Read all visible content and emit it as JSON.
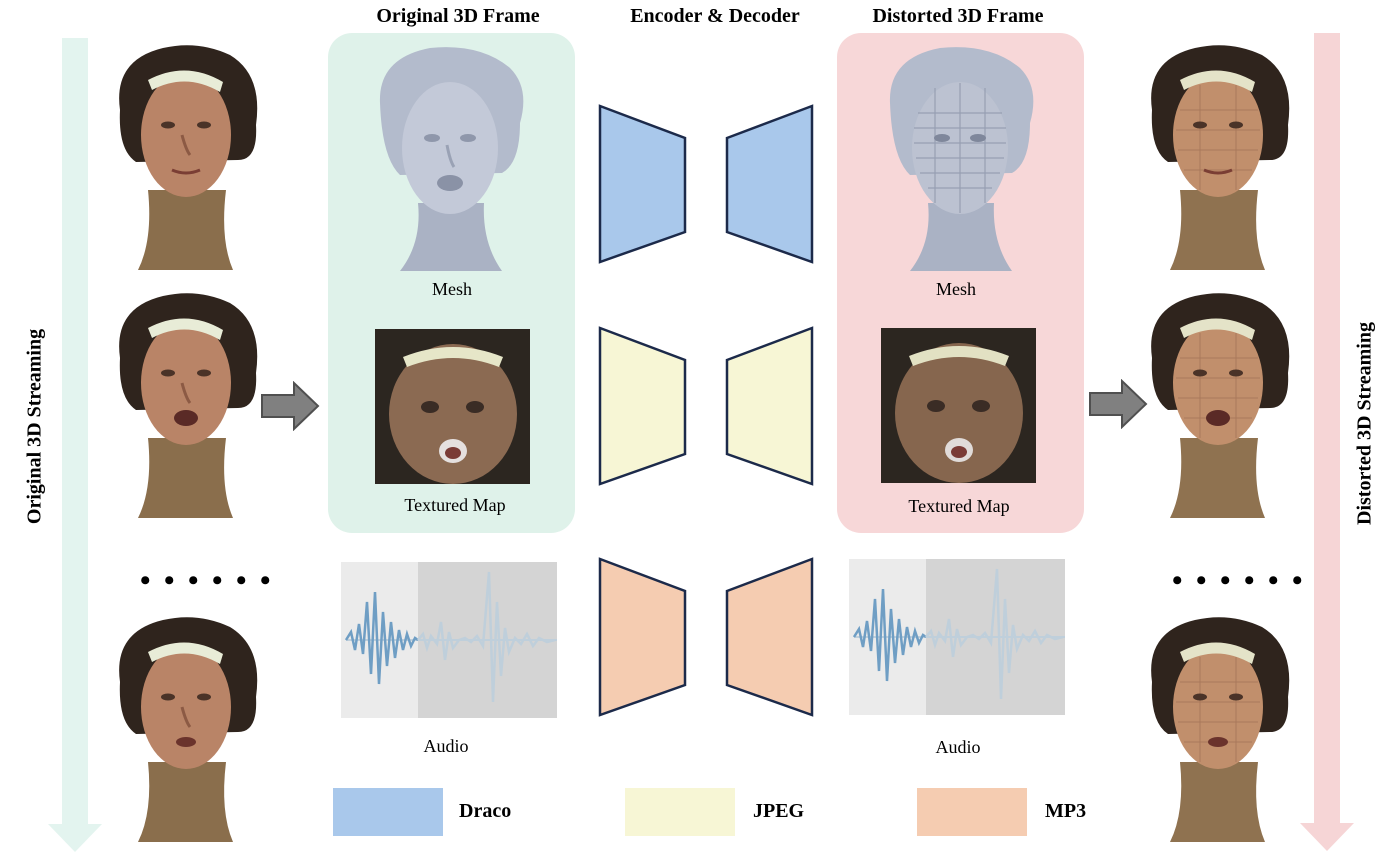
{
  "headings": {
    "original_frame": "Original 3D Frame",
    "encoder_decoder": "Encoder & Decoder",
    "distorted_frame": "Distorted 3D Frame"
  },
  "side_labels": {
    "left": "Original 3D Streaming",
    "right": "Distorted 3D Streaming"
  },
  "captions": {
    "mesh_left": "Mesh",
    "texture_left": "Textured Map",
    "audio_left": "Audio",
    "mesh_right": "Mesh",
    "texture_right": "Textured Map",
    "audio_right": "Audio"
  },
  "ellipsis": "• • • • • •",
  "legend": [
    {
      "label": "Draco",
      "color": "#a9c8eb"
    },
    {
      "label": "JPEG",
      "color": "#f7f6d5"
    },
    {
      "label": "MP3",
      "color": "#f5ccb1"
    }
  ],
  "colors": {
    "original_panel": "#dff2ea",
    "distorted_panel": "#f7d7d8",
    "original_stream_arrow": "#e3f4ef",
    "distorted_stream_arrow": "#f6d5d6",
    "codec_outline": "#1c2a4a",
    "audio_wave": "#6f9ec4",
    "audio_wave_faded": "#bfcfdb",
    "audio_bg_light": "#ebebeb",
    "audio_bg_dark": "#d4d4d4",
    "block_arrow": "#808080"
  }
}
